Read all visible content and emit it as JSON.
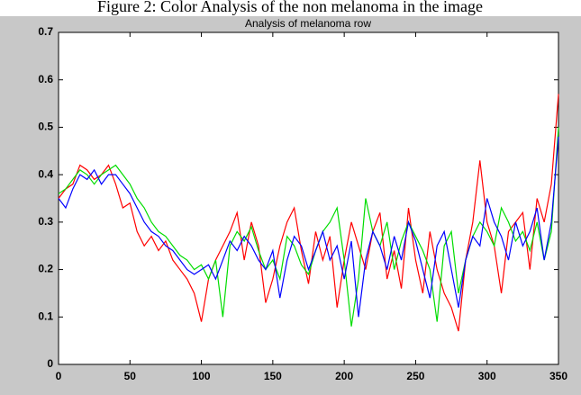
{
  "caption": "Figure 2: Color Analysis of the non melanoma in the image",
  "chart_data": {
    "type": "line",
    "title": "Analysis of  melanoma row",
    "x": [
      0,
      5,
      10,
      15,
      20,
      25,
      30,
      35,
      40,
      45,
      50,
      55,
      60,
      65,
      70,
      75,
      80,
      85,
      90,
      95,
      100,
      105,
      110,
      115,
      120,
      125,
      130,
      135,
      140,
      145,
      150,
      155,
      160,
      165,
      170,
      175,
      180,
      185,
      190,
      195,
      200,
      205,
      210,
      215,
      220,
      225,
      230,
      235,
      240,
      245,
      250,
      255,
      260,
      265,
      270,
      275,
      280,
      285,
      290,
      295,
      300,
      305,
      310,
      315,
      320,
      325,
      330,
      335,
      340,
      345,
      350
    ],
    "series": [
      {
        "name": "red",
        "color": "#ff0000",
        "values": [
          0.35,
          0.37,
          0.38,
          0.42,
          0.41,
          0.39,
          0.4,
          0.42,
          0.38,
          0.33,
          0.34,
          0.28,
          0.25,
          0.27,
          0.24,
          0.26,
          0.22,
          0.2,
          0.18,
          0.15,
          0.09,
          0.18,
          0.22,
          0.25,
          0.28,
          0.32,
          0.22,
          0.3,
          0.25,
          0.13,
          0.18,
          0.25,
          0.3,
          0.33,
          0.24,
          0.17,
          0.28,
          0.22,
          0.27,
          0.12,
          0.22,
          0.3,
          0.25,
          0.2,
          0.28,
          0.32,
          0.18,
          0.24,
          0.16,
          0.33,
          0.22,
          0.15,
          0.28,
          0.2,
          0.15,
          0.12,
          0.07,
          0.22,
          0.3,
          0.43,
          0.3,
          0.25,
          0.15,
          0.28,
          0.3,
          0.32,
          0.2,
          0.35,
          0.3,
          0.38,
          0.57
        ]
      },
      {
        "name": "green",
        "color": "#00dd00",
        "values": [
          0.36,
          0.37,
          0.39,
          0.41,
          0.4,
          0.38,
          0.4,
          0.41,
          0.42,
          0.4,
          0.38,
          0.35,
          0.33,
          0.3,
          0.28,
          0.27,
          0.25,
          0.23,
          0.22,
          0.2,
          0.21,
          0.18,
          0.22,
          0.1,
          0.25,
          0.28,
          0.26,
          0.29,
          0.24,
          0.2,
          0.22,
          0.18,
          0.27,
          0.25,
          0.21,
          0.19,
          0.24,
          0.28,
          0.3,
          0.33,
          0.22,
          0.08,
          0.18,
          0.35,
          0.28,
          0.25,
          0.3,
          0.2,
          0.26,
          0.3,
          0.27,
          0.24,
          0.2,
          0.09,
          0.25,
          0.28,
          0.15,
          0.22,
          0.27,
          0.3,
          0.28,
          0.25,
          0.33,
          0.3,
          0.26,
          0.28,
          0.24,
          0.3,
          0.22,
          0.28,
          0.5
        ]
      },
      {
        "name": "blue",
        "color": "#0000ff",
        "values": [
          0.35,
          0.33,
          0.37,
          0.4,
          0.39,
          0.41,
          0.38,
          0.4,
          0.4,
          0.38,
          0.36,
          0.33,
          0.3,
          0.28,
          0.27,
          0.25,
          0.24,
          0.22,
          0.2,
          0.19,
          0.2,
          0.21,
          0.18,
          0.22,
          0.26,
          0.24,
          0.27,
          0.25,
          0.22,
          0.2,
          0.24,
          0.14,
          0.22,
          0.27,
          0.25,
          0.2,
          0.24,
          0.28,
          0.22,
          0.25,
          0.18,
          0.26,
          0.1,
          0.22,
          0.28,
          0.25,
          0.2,
          0.27,
          0.22,
          0.3,
          0.26,
          0.2,
          0.14,
          0.25,
          0.28,
          0.2,
          0.12,
          0.22,
          0.27,
          0.25,
          0.35,
          0.3,
          0.27,
          0.22,
          0.3,
          0.25,
          0.28,
          0.33,
          0.22,
          0.3,
          0.48
        ]
      }
    ],
    "xlim": [
      0,
      350
    ],
    "xticks": [
      0,
      50,
      100,
      150,
      200,
      250,
      300,
      350
    ],
    "ylim": [
      0,
      0.7
    ],
    "yticks": [
      0,
      0.1,
      0.2,
      0.3,
      0.4,
      0.5,
      0.6,
      0.7
    ]
  }
}
